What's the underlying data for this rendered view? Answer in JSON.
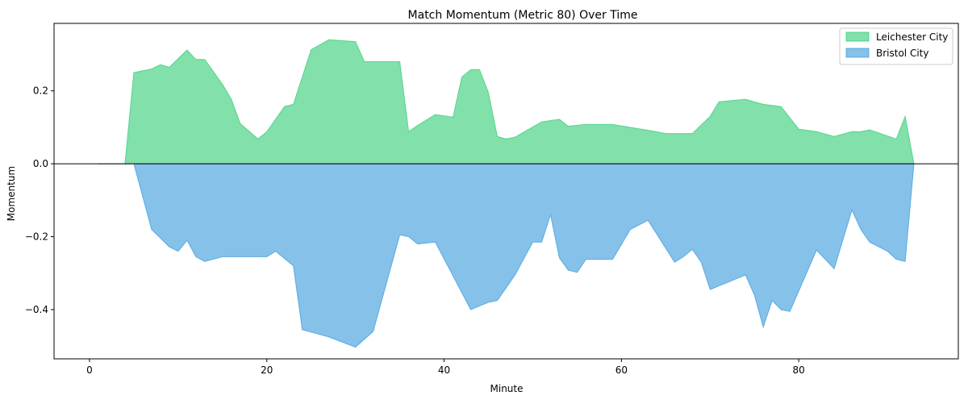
{
  "chart_data": {
    "type": "area",
    "title": "Match Momentum (Metric 80) Over Time",
    "xlabel": "Minute",
    "ylabel": "Momentum",
    "xlim": [
      -4,
      98
    ],
    "ylim": [
      -0.535,
      0.385
    ],
    "xticks": [
      0,
      20,
      40,
      60,
      80
    ],
    "yticks": [
      -0.4,
      -0.2,
      0.0,
      0.2
    ],
    "ytick_labels": [
      "−0.4",
      "−0.2",
      "0.0",
      "0.2"
    ],
    "grid": false,
    "legend_position": "top-right",
    "baseline_line": true,
    "series": [
      {
        "name": "Leichester City",
        "color": "#2ecc71",
        "x": [
          1,
          4,
          5,
          7,
          8,
          9,
          11,
          12,
          13,
          14,
          15,
          16,
          17,
          19,
          20,
          22,
          23,
          25,
          27,
          30,
          31,
          32,
          34,
          35,
          36,
          37,
          39,
          41,
          42,
          43,
          44,
          45,
          46,
          47,
          48,
          51,
          53,
          54,
          56,
          59,
          63,
          65,
          68,
          70,
          71,
          74,
          76,
          78,
          80,
          82,
          84,
          86,
          87,
          88,
          91,
          92,
          93
        ],
        "values": [
          0,
          0,
          0.25,
          0.26,
          0.272,
          0.265,
          0.312,
          0.286,
          0.286,
          0.252,
          0.218,
          0.177,
          0.11,
          0.068,
          0.088,
          0.157,
          0.163,
          0.313,
          0.34,
          0.335,
          0.28,
          0.28,
          0.28,
          0.28,
          0.088,
          0.105,
          0.135,
          0.128,
          0.238,
          0.258,
          0.258,
          0.195,
          0.075,
          0.068,
          0.073,
          0.115,
          0.122,
          0.103,
          0.108,
          0.108,
          0.092,
          0.083,
          0.083,
          0.13,
          0.17,
          0.177,
          0.163,
          0.157,
          0.095,
          0.088,
          0.075,
          0.088,
          0.088,
          0.093,
          0.068,
          0.13,
          0
        ]
      },
      {
        "name": "Bristol City",
        "color": "#3498db",
        "x": [
          1,
          5,
          7,
          9,
          10,
          11,
          12,
          13,
          15,
          20,
          21,
          23,
          24,
          27,
          30,
          32,
          35,
          36,
          37,
          39,
          43,
          45,
          46,
          48,
          50,
          51,
          52,
          53,
          54,
          55,
          56,
          59,
          61,
          63,
          66,
          67,
          68,
          69,
          70,
          74,
          75,
          76,
          77,
          78,
          79,
          82,
          84,
          86,
          87,
          88,
          90,
          91,
          92,
          93
        ],
        "values": [
          0,
          0,
          -0.18,
          -0.228,
          -0.24,
          -0.21,
          -0.255,
          -0.268,
          -0.255,
          -0.255,
          -0.24,
          -0.28,
          -0.455,
          -0.475,
          -0.503,
          -0.46,
          -0.195,
          -0.2,
          -0.22,
          -0.215,
          -0.4,
          -0.38,
          -0.375,
          -0.305,
          -0.215,
          -0.215,
          -0.14,
          -0.258,
          -0.292,
          -0.298,
          -0.262,
          -0.262,
          -0.18,
          -0.155,
          -0.27,
          -0.255,
          -0.235,
          -0.27,
          -0.345,
          -0.305,
          -0.36,
          -0.448,
          -0.375,
          -0.4,
          -0.405,
          -0.237,
          -0.288,
          -0.127,
          -0.18,
          -0.215,
          -0.24,
          -0.262,
          -0.268,
          0
        ]
      }
    ]
  }
}
